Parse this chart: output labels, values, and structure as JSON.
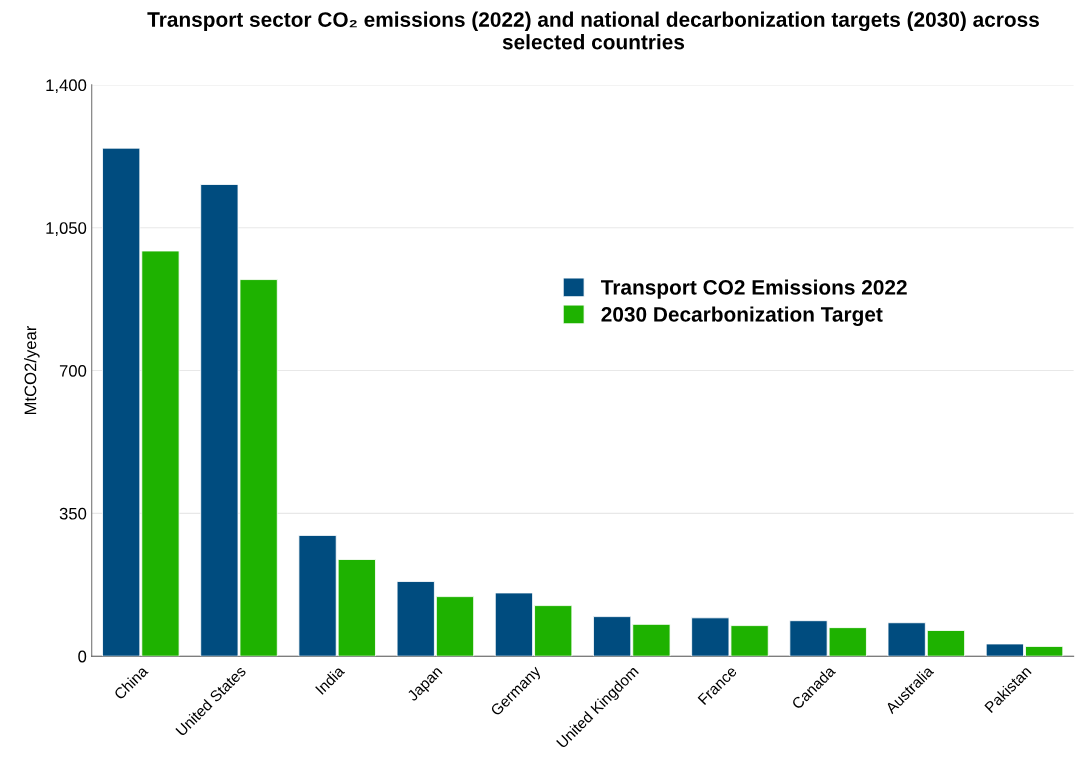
{
  "chart_data": {
    "type": "bar",
    "title": "Transport sector CO₂ emissions (2022) and national decarbonization targets (2030) across selected countries",
    "ylabel": "MtCO2/year",
    "categories": [
      "China",
      "United States",
      "India",
      "Japan",
      "Germany",
      "United Kingdom",
      "France",
      "Canada",
      "Australia",
      "Pakistan"
    ],
    "series": [
      {
        "name": "Transport CO2 Emissions 2022",
        "color": "#004c7f",
        "values": [
          1245,
          1156,
          296,
          183,
          155,
          97,
          94,
          87,
          82,
          30
        ]
      },
      {
        "name": "2030 Decarbonization Target",
        "color": "#1eb200",
        "values": [
          993,
          923,
          237,
          146,
          124,
          78,
          75,
          70,
          63,
          24
        ]
      }
    ],
    "ylim": [
      0,
      1400
    ],
    "yticks": [
      {
        "value": 0,
        "label": "0"
      },
      {
        "value": 350,
        "label": "350"
      },
      {
        "value": 700,
        "label": "700"
      },
      {
        "value": 1050,
        "label": "1,050"
      },
      {
        "value": 1400,
        "label": "1,400"
      }
    ],
    "grid": "y",
    "legend": "right"
  }
}
